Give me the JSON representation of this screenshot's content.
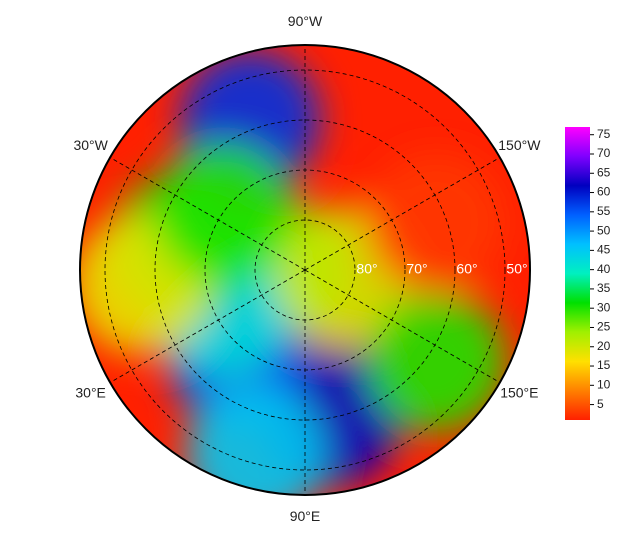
{
  "map": {
    "projection": "north-polar-stereographic",
    "lat_edge": 45,
    "lon_ticks": [
      {
        "value": -90,
        "label": "90°W"
      },
      {
        "value": -30,
        "label": "30°W"
      },
      {
        "value": -150,
        "label": "150°W"
      },
      {
        "value": 30,
        "label": "30°E"
      },
      {
        "value": 150,
        "label": "150°E"
      },
      {
        "value": 90,
        "label": "90°E"
      }
    ],
    "lat_ticks": [
      {
        "value": 80,
        "label": "80°"
      },
      {
        "value": 70,
        "label": "70°"
      },
      {
        "value": 60,
        "label": "60°"
      },
      {
        "value": 50,
        "label": "50°"
      }
    ],
    "colorbar": {
      "clim": [
        1,
        77
      ],
      "ticks": [
        5,
        10,
        15,
        20,
        25,
        30,
        35,
        40,
        45,
        50,
        55,
        60,
        65,
        70,
        75
      ],
      "colormap": [
        "#ff2000",
        "#ff8000",
        "#ffe000",
        "#a0f000",
        "#00e000",
        "#00f0c0",
        "#00c0ff",
        "#0060ff",
        "#0000c0",
        "#8000ff",
        "#ff00ff"
      ]
    },
    "field": [
      {
        "lat": 85,
        "lon": 0,
        "value": 30
      },
      {
        "lat": 60,
        "lon": 100,
        "value": 62
      },
      {
        "lat": 68,
        "lon": 52,
        "value": 55
      },
      {
        "lat": 58,
        "lon": -70,
        "value": 58
      },
      {
        "lat": 72,
        "lon": 25,
        "value": 42
      },
      {
        "lat": 64,
        "lon": -10,
        "value": 32
      },
      {
        "lat": 57,
        "lon": 5,
        "value": 18
      },
      {
        "lat": 82,
        "lon": 170,
        "value": 20
      },
      {
        "lat": 58,
        "lon": 145,
        "value": 30
      },
      {
        "lat": 62,
        "lon": -160,
        "value": 3
      },
      {
        "lat": 70,
        "lon": -35,
        "value": 30
      },
      {
        "lat": 52,
        "lon": 75,
        "value": 45
      }
    ]
  }
}
